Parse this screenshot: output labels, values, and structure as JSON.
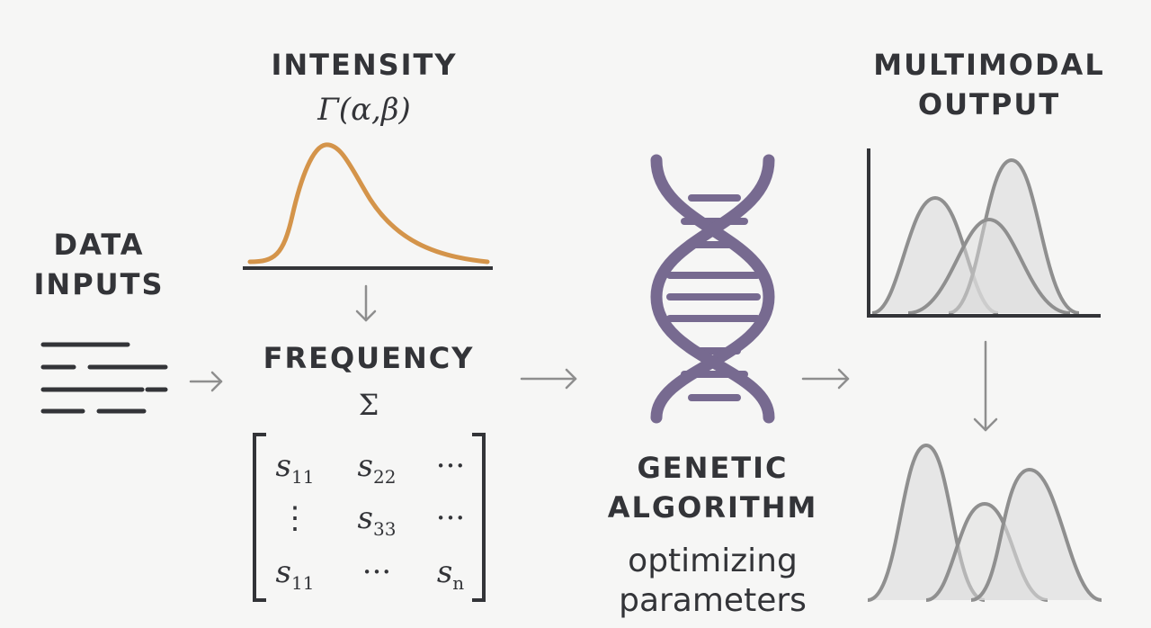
{
  "inputs": {
    "title_line1": "DATA",
    "title_line2": "INPUTS"
  },
  "intensity": {
    "title": "INTENSITY",
    "formula": "Γ(α,β)"
  },
  "frequency": {
    "title": "FREQUENCY",
    "symbol": "Σ",
    "matrix": [
      [
        {
          "base": "s",
          "sub": "11"
        },
        {
          "base": "s",
          "sub": "22"
        },
        {
          "base": "···",
          "sub": ""
        }
      ],
      [
        {
          "base": "⋮",
          "sub": ""
        },
        {
          "base": "s",
          "sub": "33"
        },
        {
          "base": "···",
          "sub": ""
        }
      ],
      [
        {
          "base": "s",
          "sub": "11"
        },
        {
          "base": "···",
          "sub": ""
        },
        {
          "base": "s",
          "sub": "n"
        }
      ]
    ]
  },
  "genetic": {
    "title_line1": "GENETIC",
    "title_line2": "ALGORITHM",
    "caption_line1": "optimizing",
    "caption_line2": "parameters"
  },
  "output": {
    "title_line1": "MULTIMODAL",
    "title_line2": "OUTPUT"
  },
  "colors": {
    "accent_curve": "#d4944a",
    "helix": "#776a90",
    "ink": "#333438",
    "arrow": "#8e8e8e",
    "dist_stroke": "#8f8f8f",
    "dist_fill": "#dcdcdc"
  }
}
